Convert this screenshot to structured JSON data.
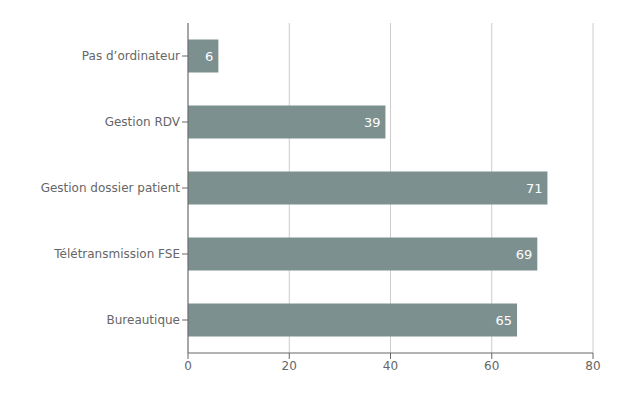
{
  "chart_data": {
    "type": "bar",
    "orientation": "horizontal",
    "categories": [
      "Bureautique",
      "Télétransmission FSE",
      "Gestion dossier patient",
      "Gestion RDV",
      "Pas d’ordinateur"
    ],
    "values": [
      65,
      69,
      71,
      39,
      6
    ],
    "color": "#7d9090",
    "xlim": [
      0,
      80
    ],
    "xticks": [
      0,
      20,
      40,
      60,
      80
    ],
    "grid": true,
    "data_labels": true
  }
}
